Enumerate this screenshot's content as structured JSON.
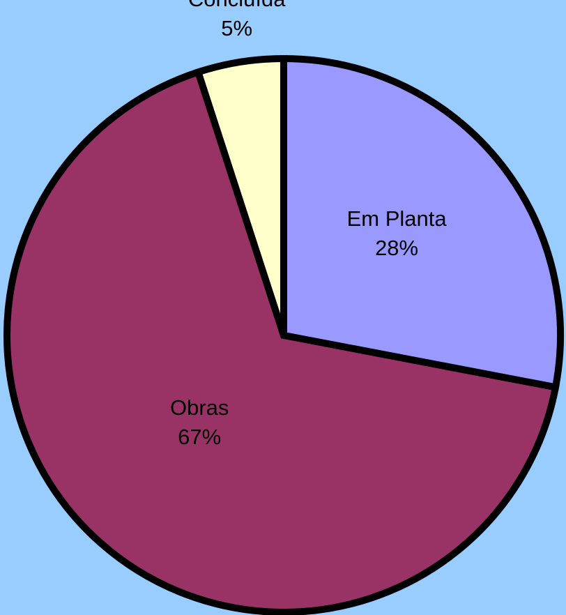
{
  "chart_data": {
    "type": "pie",
    "title": "",
    "background_color": "#99CCFF",
    "start_angle_deg": 0,
    "direction": "clockwise",
    "slices": [
      {
        "label": "Em Planta",
        "percent_label": "28%",
        "value": 28,
        "color": "#9999FF"
      },
      {
        "label": "Obras",
        "percent_label": "67%",
        "value": 67,
        "color": "#993366"
      },
      {
        "label": "Concluída",
        "percent_label": "5%",
        "value": 5,
        "color": "#FFFFCC"
      }
    ]
  }
}
